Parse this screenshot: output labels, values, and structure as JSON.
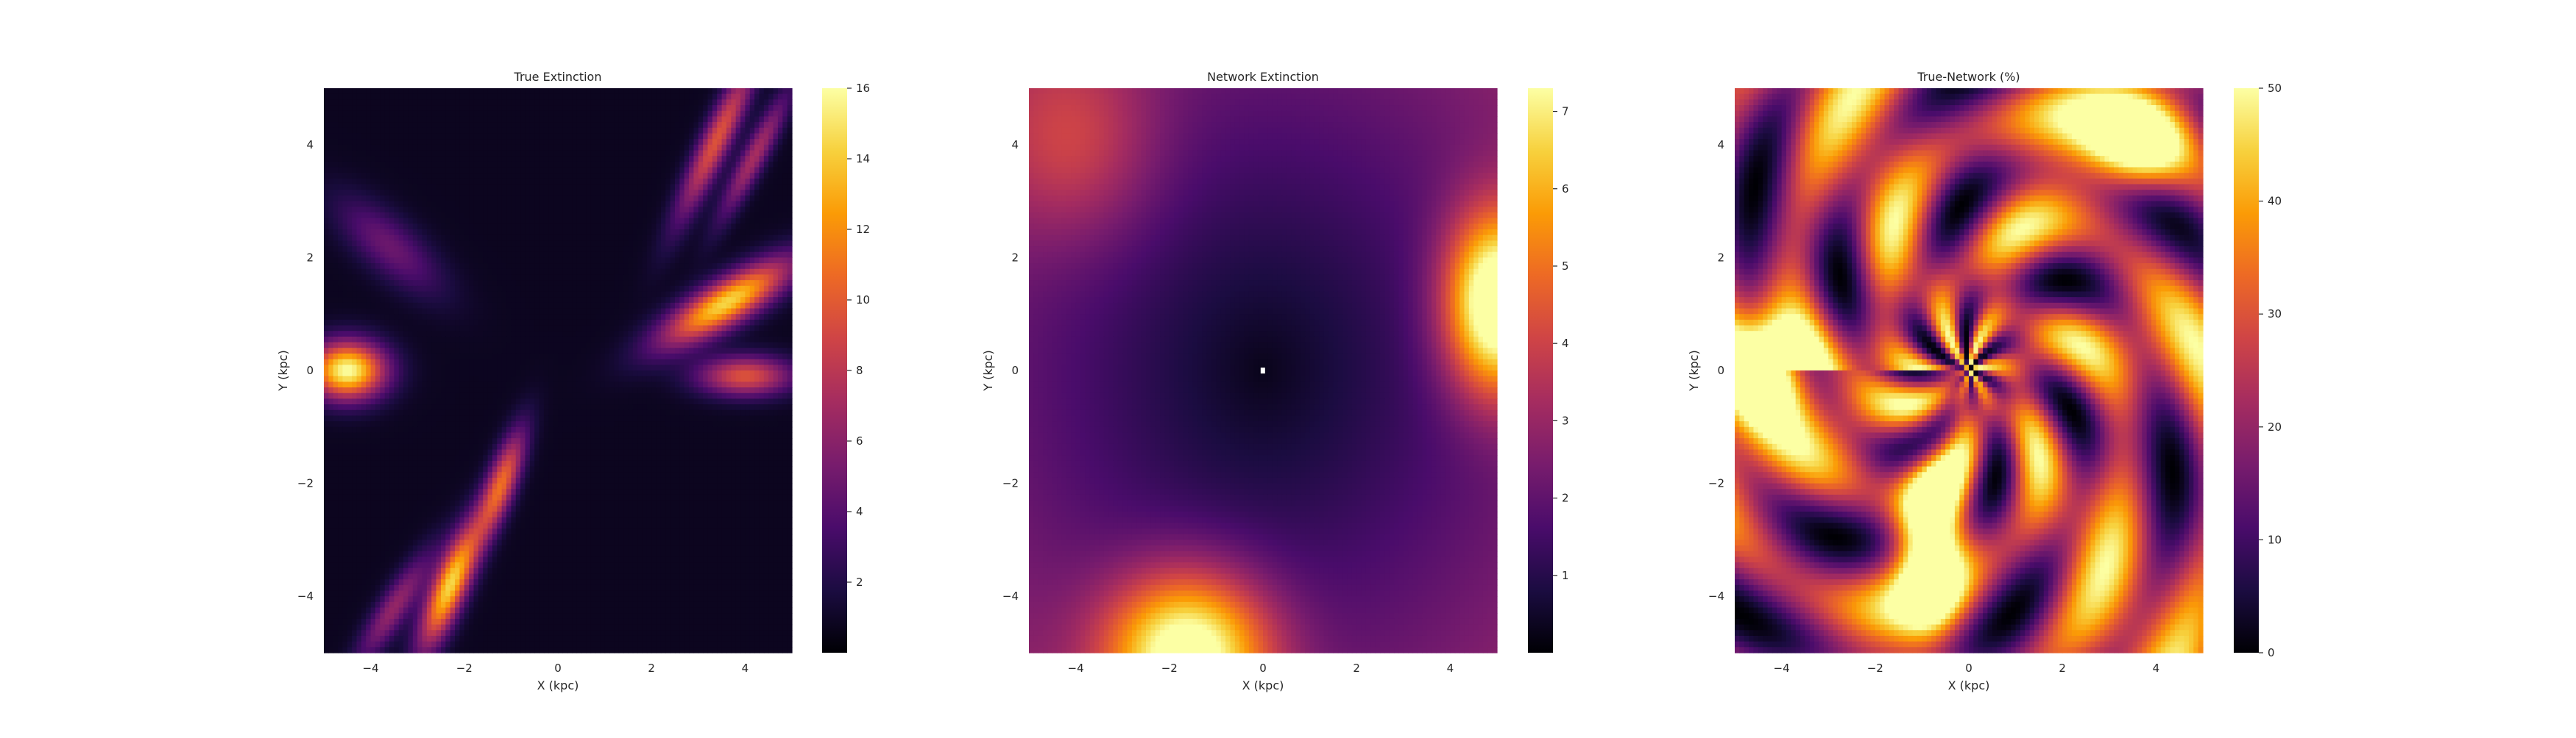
{
  "chart_data": [
    {
      "type": "heatmap",
      "title": "True Extinction",
      "xlabel": "X (kpc)",
      "ylabel": "Y (kpc)",
      "xlim": [
        -5,
        5
      ],
      "ylim": [
        -5,
        5
      ],
      "x_ticks": [
        -4,
        -2,
        0,
        2,
        4
      ],
      "y_ticks": [
        -4,
        -2,
        0,
        2,
        4
      ],
      "colormap": "inferno",
      "color_range": [
        0,
        16
      ],
      "colorbar_ticks": [
        2,
        4,
        6,
        8,
        10,
        12,
        14,
        16
      ]
    },
    {
      "type": "heatmap",
      "title": "Network Extinction",
      "xlabel": "X (kpc)",
      "ylabel": "Y (kpc)",
      "xlim": [
        -5,
        5
      ],
      "ylim": [
        -5,
        5
      ],
      "x_ticks": [
        -4,
        -2,
        0,
        2,
        4
      ],
      "y_ticks": [
        -4,
        -2,
        0,
        2,
        4
      ],
      "colormap": "inferno",
      "color_range": [
        0,
        7.3
      ],
      "colorbar_ticks": [
        1,
        2,
        3,
        4,
        5,
        6,
        7
      ]
    },
    {
      "type": "heatmap",
      "title": "True-Network (%)",
      "xlabel": "X (kpc)",
      "ylabel": "Y (kpc)",
      "xlim": [
        -5,
        5
      ],
      "ylim": [
        -5,
        5
      ],
      "x_ticks": [
        -4,
        -2,
        0,
        2,
        4
      ],
      "y_ticks": [
        -4,
        -2,
        0,
        2,
        4
      ],
      "colormap": "inferno",
      "color_range": [
        0,
        50
      ],
      "colorbar_ticks": [
        0,
        10,
        20,
        30,
        40,
        50
      ]
    }
  ],
  "colors": {
    "inferno": [
      "#000004",
      "#1b0c41",
      "#4a0c6b",
      "#781c6d",
      "#a52c60",
      "#cf4446",
      "#ed6925",
      "#fb9b06",
      "#f7d13d",
      "#fcffa4"
    ]
  }
}
